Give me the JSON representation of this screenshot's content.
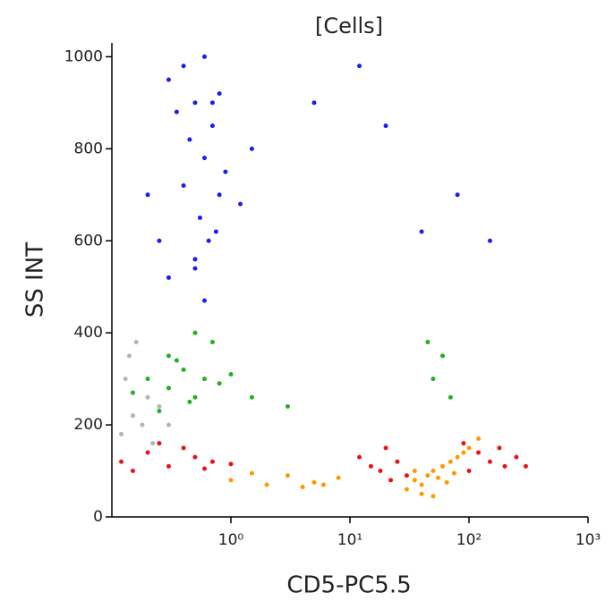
{
  "chart_data": {
    "type": "scatter",
    "title": "[Cells]",
    "x_label": "CD5-PC5.5",
    "y_label": "SS INT",
    "x_scale": "log",
    "xlim": [
      0.1,
      1000
    ],
    "ylim": [
      0,
      1030
    ],
    "xticks": [
      {
        "value": 1,
        "label": "10⁰"
      },
      {
        "value": 10,
        "label": "10¹"
      },
      {
        "value": 100,
        "label": "10²"
      },
      {
        "value": 1000,
        "label": "10³"
      }
    ],
    "yticks": [
      0,
      200,
      400,
      600,
      800,
      1000
    ],
    "series": [
      {
        "color": "#1c1cf0",
        "x": [
          0.3,
          0.5,
          0.7,
          0.6,
          0.4,
          0.8,
          0.55,
          0.65,
          0.45,
          0.35,
          0.9,
          1.2,
          0.25,
          0.5,
          0.7,
          0.6,
          0.4,
          0.75,
          0.5,
          0.2,
          1.5,
          0.3,
          0.6,
          0.8,
          5,
          20,
          40,
          80,
          150,
          12
        ],
        "values": [
          950,
          900,
          850,
          780,
          720,
          700,
          650,
          600,
          820,
          880,
          750,
          680,
          600,
          560,
          900,
          1000,
          980,
          620,
          540,
          700,
          800,
          520,
          470,
          920,
          900,
          850,
          620,
          700,
          600,
          980
        ]
      },
      {
        "color": "#22b022",
        "x": [
          0.2,
          0.3,
          0.4,
          0.5,
          0.6,
          0.35,
          0.45,
          0.25,
          0.8,
          1.0,
          0.15,
          0.7,
          0.5,
          0.3,
          1.5,
          3,
          50,
          60,
          70,
          45
        ],
        "values": [
          300,
          280,
          320,
          260,
          300,
          340,
          250,
          230,
          290,
          310,
          270,
          380,
          400,
          350,
          260,
          240,
          300,
          350,
          260,
          380
        ]
      },
      {
        "color": "#b4b4b4",
        "x": [
          0.12,
          0.15,
          0.2,
          0.13,
          0.18,
          0.25,
          0.14,
          0.22,
          0.16,
          0.3
        ],
        "values": [
          180,
          220,
          260,
          300,
          200,
          240,
          350,
          160,
          380,
          200
        ]
      },
      {
        "color": "#ee1111",
        "x": [
          0.12,
          0.2,
          0.3,
          0.5,
          0.7,
          0.15,
          0.4,
          0.25,
          0.6,
          1.0,
          12,
          15,
          20,
          25,
          30,
          18,
          120,
          150,
          200,
          250,
          100,
          180,
          300,
          90,
          22
        ],
        "values": [
          120,
          140,
          110,
          130,
          120,
          100,
          150,
          160,
          105,
          115,
          130,
          110,
          150,
          120,
          90,
          100,
          140,
          120,
          110,
          130,
          100,
          150,
          110,
          160,
          80
        ]
      },
      {
        "color": "#ff9900",
        "x": [
          1,
          2,
          3,
          5,
          8,
          1.5,
          4,
          6,
          30,
          35,
          40,
          45,
          50,
          55,
          60,
          70,
          80,
          90,
          100,
          40,
          50,
          65,
          75,
          35,
          120
        ],
        "values": [
          80,
          70,
          90,
          75,
          85,
          95,
          65,
          70,
          60,
          80,
          70,
          90,
          100,
          85,
          110,
          120,
          130,
          140,
          150,
          50,
          45,
          75,
          95,
          100,
          170
        ]
      }
    ]
  }
}
